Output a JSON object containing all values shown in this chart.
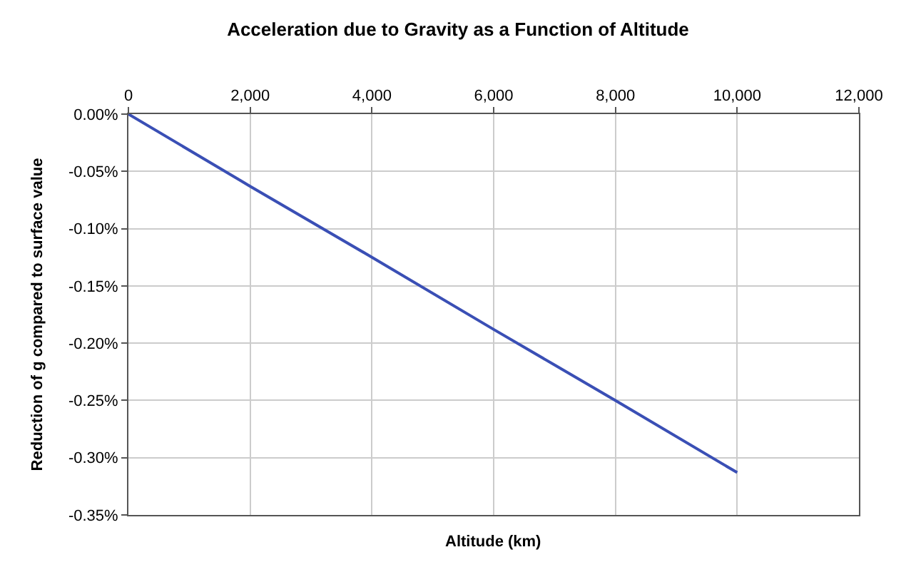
{
  "chart_data": {
    "type": "line",
    "title": "Acceleration due to Gravity as a Function of Altitude",
    "xlabel": "Altitude (km)",
    "ylabel": "Reduction of g compared to surface value",
    "x": [
      0,
      2000,
      4000,
      6000,
      8000,
      10000
    ],
    "series": [
      {
        "color": "#3a4fb5",
        "values": [
          0,
          -0.063,
          -0.125,
          -0.188,
          -0.25,
          -0.313
        ]
      }
    ],
    "xlim": [
      0,
      12000
    ],
    "xticks": [
      0,
      {
        "value": 2000,
        "label": "2,000"
      },
      {
        "value": 4000,
        "label": "4,000"
      },
      {
        "value": 6000,
        "label": "6,000"
      },
      {
        "value": 8000,
        "label": "8,000"
      },
      {
        "value": 10000,
        "label": "10,000"
      },
      {
        "value": 12000,
        "label": "12,000"
      }
    ],
    "ylim": [
      -0.35,
      0
    ],
    "yticks": [
      {
        "value": 0,
        "label": "0.00%"
      },
      {
        "value": -0.05,
        "label": "-0.05%"
      },
      {
        "value": -0.1,
        "label": "-0.10%"
      },
      {
        "value": -0.15,
        "label": "-0.15%"
      },
      {
        "value": -0.2,
        "label": "-0.20%"
      },
      {
        "value": -0.25,
        "label": "-0.25%"
      },
      {
        "value": -0.3,
        "label": "-0.30%"
      },
      {
        "value": -0.35,
        "label": "-0.35%"
      }
    ],
    "grid": true,
    "marker": "none",
    "line_style": "solid"
  }
}
